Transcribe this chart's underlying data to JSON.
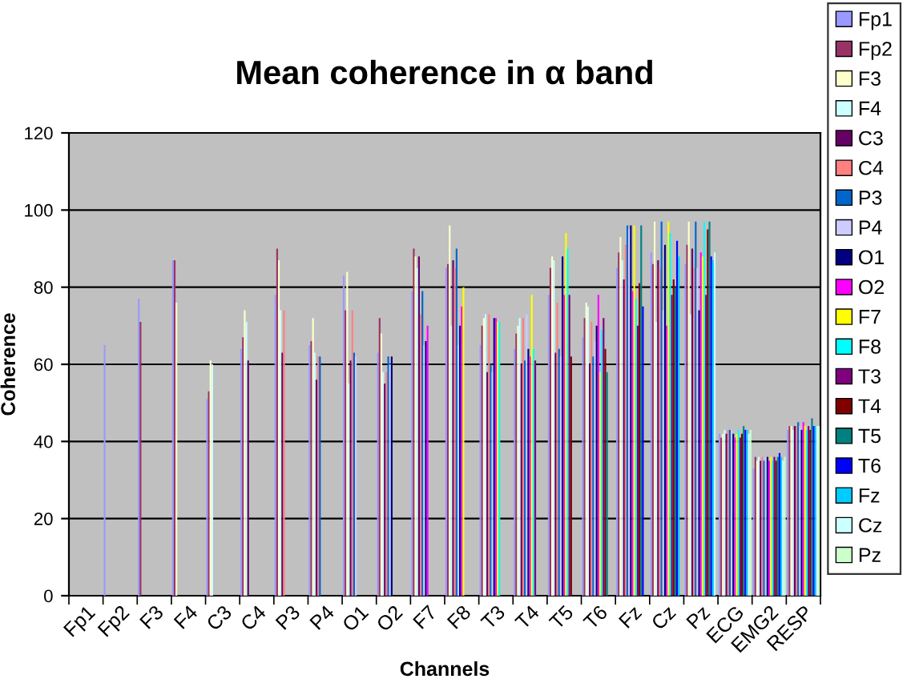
{
  "chart_data": {
    "type": "bar",
    "title": "Mean coherence in α band",
    "xlabel": "Channels",
    "ylabel": "Coherence",
    "categories": [
      "Fp1",
      "Fp2",
      "F3",
      "F4",
      "C3",
      "C4",
      "P3",
      "P4",
      "O1",
      "O2",
      "F7",
      "F8",
      "T3",
      "T4",
      "T5",
      "T6",
      "Fz",
      "Cz",
      "Pz",
      "ECG",
      "EMG2",
      "RESP"
    ],
    "ylim": [
      0,
      120
    ],
    "yticks": [
      0,
      20,
      40,
      60,
      80,
      100,
      120
    ],
    "grid": "y",
    "legend": "right",
    "series": [
      {
        "name": "Fp1",
        "color": "#9999ff",
        "values": [
          null,
          65,
          77,
          87,
          51,
          64,
          78,
          65,
          83,
          63,
          79,
          85,
          65,
          64,
          78,
          67,
          85,
          89,
          86,
          42,
          33,
          43
        ]
      },
      {
        "name": "Fp2",
        "color": "#993366",
        "values": [
          null,
          null,
          71,
          87,
          53,
          67,
          90,
          66,
          74,
          72,
          90,
          86,
          70,
          68,
          85,
          72,
          89,
          86,
          91,
          41,
          36,
          44
        ]
      },
      {
        "name": "F3",
        "color": "#ffffcc",
        "values": [
          null,
          null,
          null,
          76,
          61,
          74,
          87,
          72,
          84,
          68,
          88,
          96,
          72,
          70,
          88,
          76,
          93,
          97,
          97,
          42,
          35,
          44
        ]
      },
      {
        "name": "F4",
        "color": "#ccffff",
        "values": [
          null,
          null,
          null,
          null,
          60,
          71,
          74,
          63,
          55,
          58,
          85,
          70,
          73,
          72,
          87,
          75,
          87,
          71,
          73,
          43,
          36,
          43
        ]
      },
      {
        "name": "C3",
        "color": "#660066",
        "values": [
          null,
          null,
          null,
          null,
          null,
          61,
          63,
          56,
          61,
          55,
          88,
          87,
          58,
          60,
          63,
          60,
          82,
          87,
          90,
          42,
          35,
          44
        ]
      },
      {
        "name": "C4",
        "color": "#ff8080",
        "values": [
          null,
          null,
          null,
          null,
          null,
          null,
          74,
          62,
          74,
          58,
          73,
          85,
          73,
          72,
          76,
          71,
          91,
          85,
          85,
          43,
          36,
          44
        ]
      },
      {
        "name": "P3",
        "color": "#0066cc",
        "values": [
          null,
          null,
          null,
          null,
          null,
          null,
          null,
          62,
          63,
          62,
          79,
          90,
          60,
          61,
          64,
          62,
          96,
          97,
          97,
          43,
          35,
          45
        ]
      },
      {
        "name": "P4",
        "color": "#ccccff",
        "values": [
          null,
          null,
          null,
          null,
          null,
          null,
          null,
          null,
          62,
          60,
          65,
          65,
          58,
          73,
          62,
          66,
          95,
          74,
          85,
          43,
          36,
          44
        ]
      },
      {
        "name": "O1",
        "color": "#000080",
        "values": [
          null,
          null,
          null,
          null,
          null,
          null,
          null,
          null,
          null,
          62,
          66,
          70,
          72,
          64,
          88,
          70,
          96,
          91,
          74,
          42,
          36,
          43
        ]
      },
      {
        "name": "O2",
        "color": "#ff00ff",
        "values": [
          null,
          null,
          null,
          null,
          null,
          null,
          null,
          null,
          null,
          null,
          70,
          75,
          72,
          62,
          78,
          78,
          79,
          70,
          89,
          41,
          35,
          45
        ]
      },
      {
        "name": "F7",
        "color": "#ffff00",
        "values": [
          null,
          null,
          null,
          null,
          null,
          null,
          null,
          null,
          null,
          null,
          null,
          80,
          71,
          78,
          94,
          58,
          96,
          97,
          88,
          42,
          36,
          44
        ]
      },
      {
        "name": "F8",
        "color": "#00ffff",
        "values": [
          null,
          null,
          null,
          null,
          null,
          null,
          null,
          null,
          null,
          null,
          null,
          null,
          71,
          64,
          90,
          69,
          77,
          94,
          97,
          43,
          35,
          43
        ]
      },
      {
        "name": "T3",
        "color": "#800080",
        "values": [
          null,
          null,
          null,
          null,
          null,
          null,
          null,
          null,
          null,
          null,
          null,
          null,
          null,
          61,
          78,
          72,
          70,
          78,
          78,
          41,
          36,
          44
        ]
      },
      {
        "name": "T4",
        "color": "#800000",
        "values": [
          null,
          null,
          null,
          null,
          null,
          null,
          null,
          null,
          null,
          null,
          null,
          null,
          null,
          null,
          62,
          64,
          81,
          82,
          95,
          42,
          35,
          43
        ]
      },
      {
        "name": "T5",
        "color": "#008080",
        "values": [
          null,
          null,
          null,
          null,
          null,
          null,
          null,
          null,
          null,
          null,
          null,
          null,
          null,
          null,
          null,
          58,
          96,
          80,
          97,
          44,
          36,
          46
        ]
      },
      {
        "name": "T6",
        "color": "#0000ff",
        "values": [
          null,
          null,
          null,
          null,
          null,
          null,
          null,
          null,
          null,
          null,
          null,
          null,
          null,
          null,
          null,
          null,
          75,
          92,
          88,
          43,
          37,
          44
        ]
      },
      {
        "name": "Fz",
        "color": "#00ccff",
        "values": [
          null,
          null,
          null,
          null,
          null,
          null,
          null,
          null,
          null,
          null,
          null,
          null,
          null,
          null,
          null,
          null,
          null,
          88,
          87,
          43,
          36,
          44
        ]
      },
      {
        "name": "Cz",
        "color": "#ccffff",
        "values": [
          null,
          null,
          null,
          null,
          null,
          null,
          null,
          null,
          null,
          null,
          null,
          null,
          null,
          null,
          null,
          null,
          null,
          null,
          89,
          42,
          35,
          44
        ]
      },
      {
        "name": "Pz",
        "color": "#ccffcc",
        "values": [
          null,
          null,
          null,
          null,
          null,
          null,
          null,
          null,
          null,
          null,
          null,
          null,
          null,
          null,
          null,
          null,
          null,
          null,
          null,
          43,
          36,
          44
        ]
      }
    ]
  }
}
